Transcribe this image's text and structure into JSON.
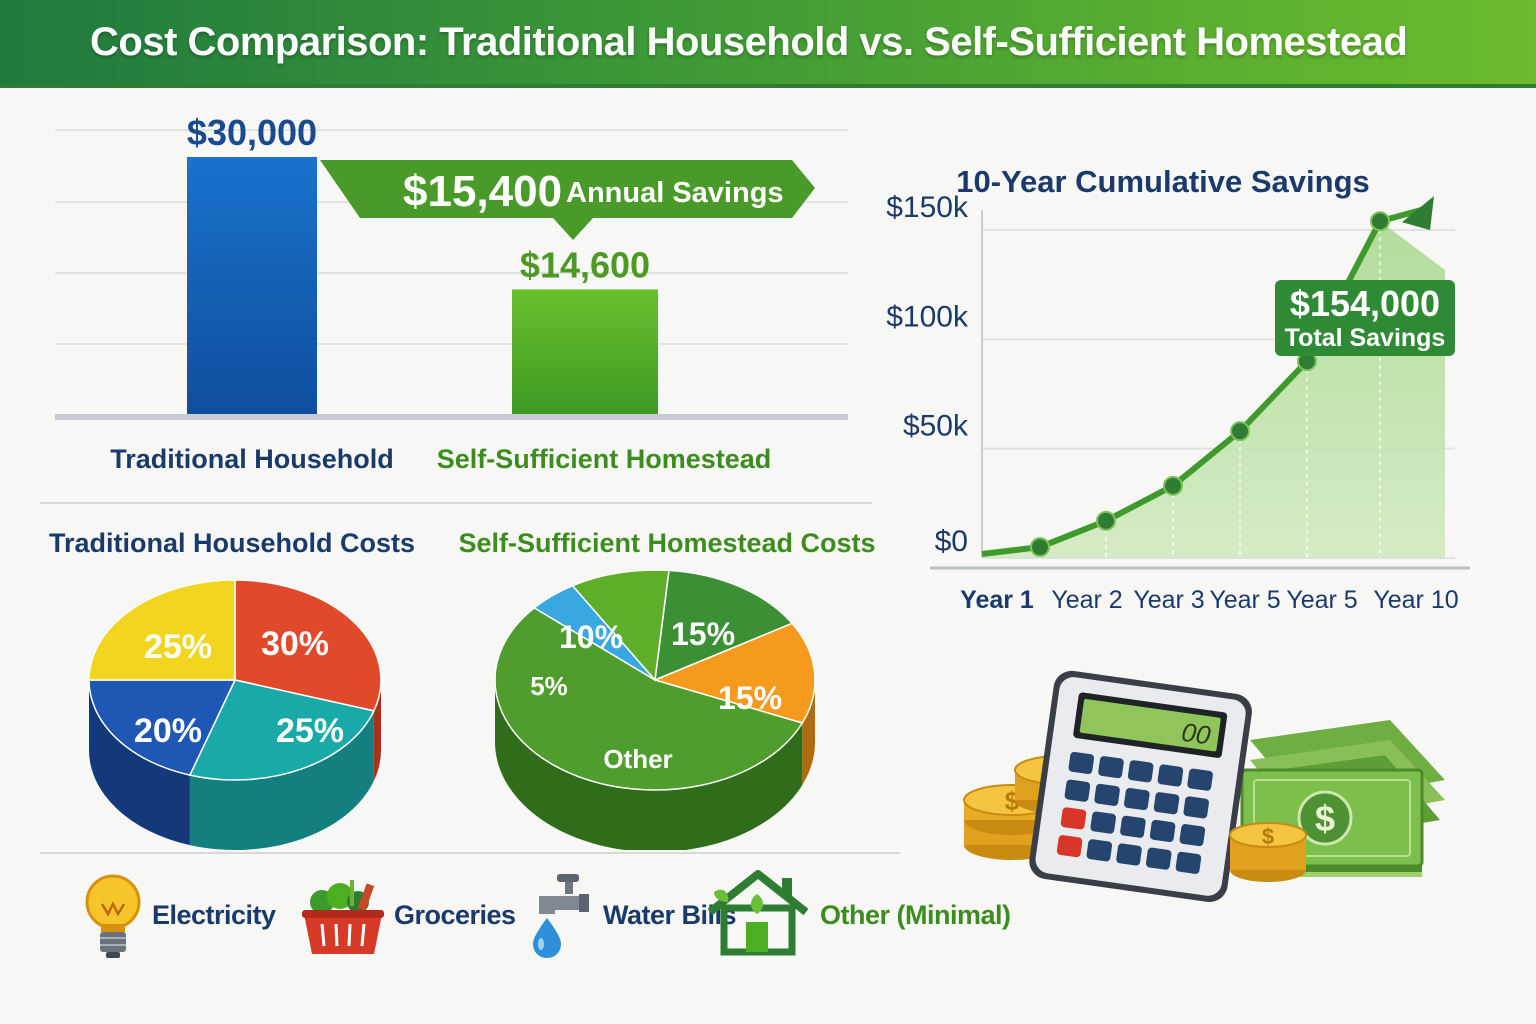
{
  "title": "Cost Comparison: Traditional Household vs. Self-Sufficient Homestead",
  "colors": {
    "blue": "#1565c0",
    "green": "#4caf22",
    "dark_green": "#2e7d32",
    "navy": "#1a3a6b",
    "text_green": "#3c8d1e"
  },
  "chart_data": [
    {
      "type": "bar",
      "categories": [
        "Traditional Household",
        "Self-Sufficient Homestead"
      ],
      "values": [
        30000,
        14600
      ],
      "data_labels": [
        "$30,000",
        "$14,600"
      ],
      "callout": {
        "value": "$15,400",
        "text": "Annual Savings"
      },
      "ylim": [
        0,
        31000
      ],
      "grid": true
    },
    {
      "type": "line",
      "title": "10-Year Cumulative Savings",
      "categories": [
        "Year 1",
        "Year 2",
        "Year 3",
        "Year 5",
        "Year 5",
        "Year 10"
      ],
      "values": [
        5000,
        17000,
        33000,
        58000,
        90000,
        154000
      ],
      "y_ticks": [
        "$0",
        "$50k",
        "$100k",
        "$150k"
      ],
      "y_tick_values": [
        0,
        50000,
        100000,
        150000
      ],
      "ylim": [
        0,
        160000
      ],
      "callout": {
        "value": "$154,000",
        "text": "Total Savings"
      },
      "grid": true
    },
    {
      "type": "pie",
      "title": "Traditional Household Costs",
      "slices": [
        {
          "label": "30%",
          "value": 30,
          "color": "#e04a2a"
        },
        {
          "label": "25%",
          "value": 25,
          "color": "#19a9a8"
        },
        {
          "label": "20%",
          "value": 20,
          "color": "#1e58b4"
        },
        {
          "label": "25%",
          "value": 25,
          "color": "#f2d51e"
        }
      ]
    },
    {
      "type": "pie",
      "title": "Self-Sufficient Homestead Costs",
      "slices": [
        {
          "label": "15%",
          "value": 15,
          "color": "#3b8f35"
        },
        {
          "label": "15%",
          "value": 15,
          "color": "#f59a1d"
        },
        {
          "label": "Other",
          "value": 55,
          "color": "#4f9d2c"
        },
        {
          "label": "5%",
          "value": 5,
          "color": "#3aa8e0"
        },
        {
          "label": "10%",
          "value": 10,
          "color": "#5fae2a"
        }
      ]
    }
  ],
  "legend": [
    {
      "label": "Electricity",
      "icon": "lightbulb-icon"
    },
    {
      "label": "Groceries",
      "icon": "basket-icon"
    },
    {
      "label": "Water Bills",
      "icon": "faucet-icon"
    },
    {
      "label": "Other (Minimal)",
      "icon": "house-icon"
    }
  ],
  "calculator_display": "00",
  "coin_symbol": "$"
}
